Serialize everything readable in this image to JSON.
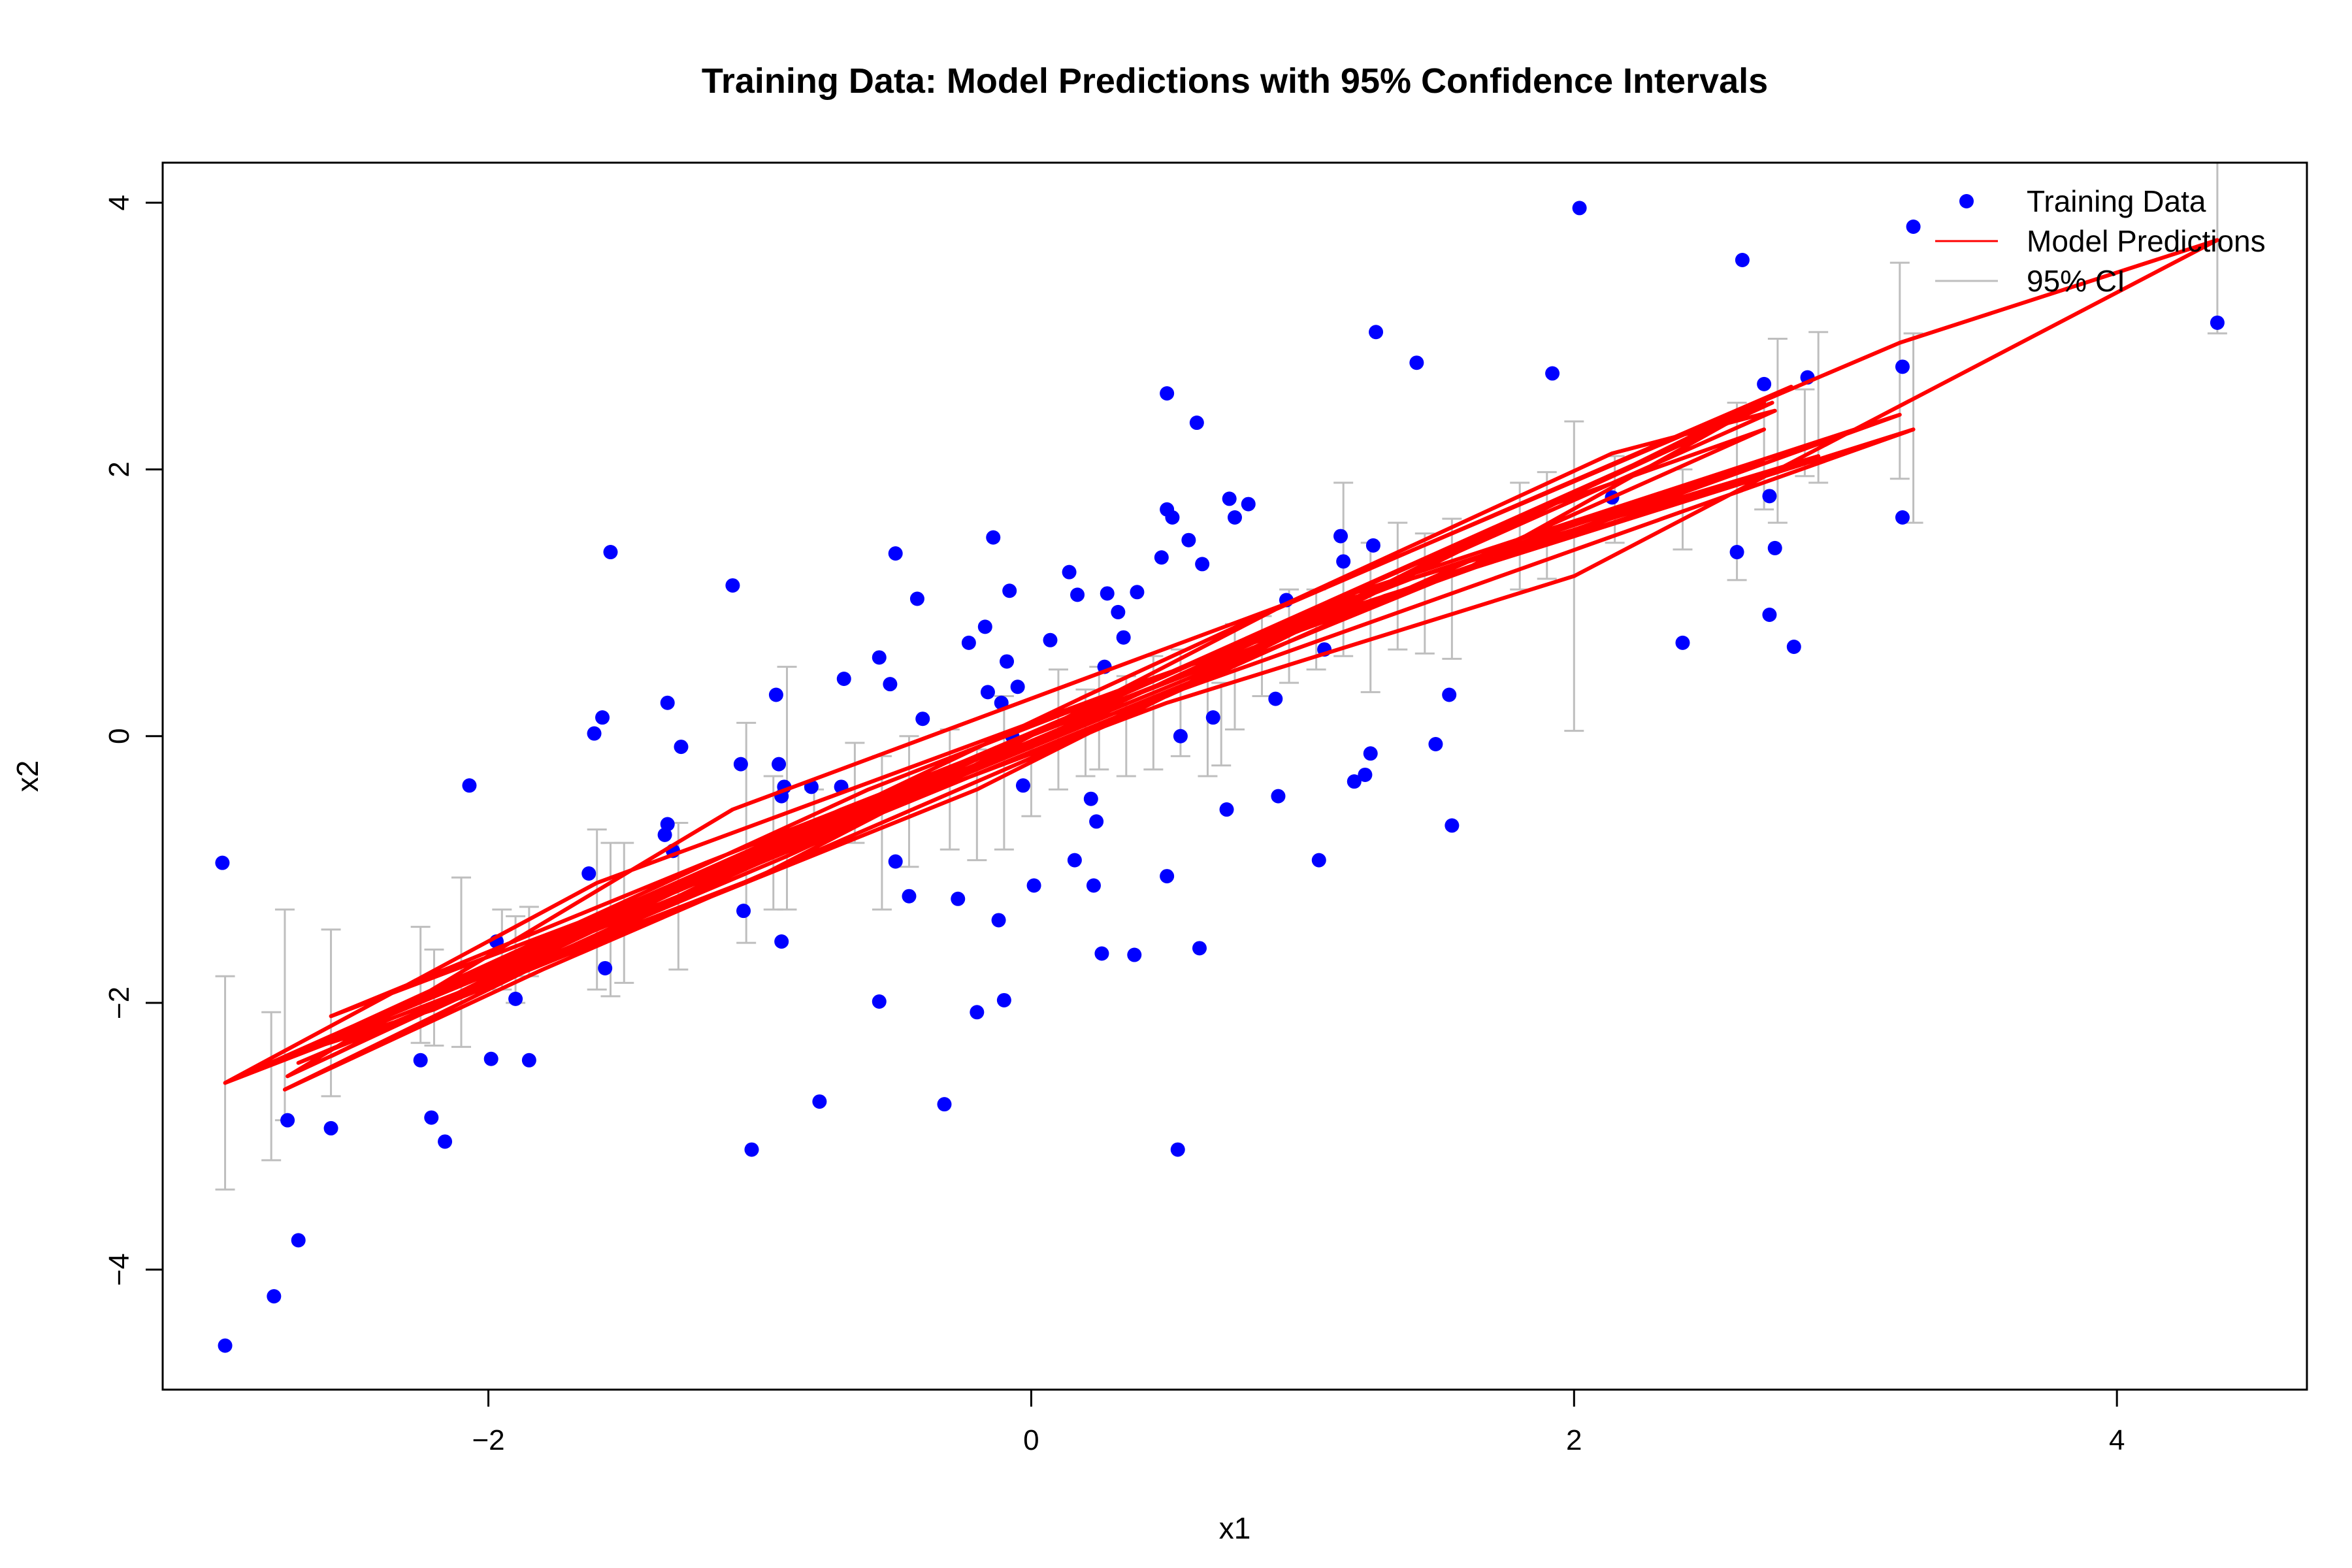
{
  "chart_data": {
    "type": "scatter",
    "title": "Training Data: Model Predictions with 95% Confidence Intervals",
    "xlabel": "x1",
    "ylabel": "x2",
    "xlim": [
      -3.2,
      4.7
    ],
    "ylim": [
      -4.9,
      4.3
    ],
    "xticks": [
      -2,
      0,
      2,
      4
    ],
    "yticks": [
      -4,
      -2,
      0,
      2,
      4
    ],
    "xtick_labels": [
      "−2",
      "0",
      "2",
      "4"
    ],
    "ytick_labels": [
      "−4",
      "−2",
      "0",
      "2",
      "4"
    ],
    "legend": {
      "position": "top-right",
      "entries": [
        {
          "label": "Training Data",
          "type": "point",
          "color": "#0000ff"
        },
        {
          "label": "Model Predictions",
          "type": "line",
          "color": "#ff0000"
        },
        {
          "label": "95% CI",
          "type": "line",
          "color": "#bebebe"
        }
      ]
    },
    "colors": {
      "points": "#0000ff",
      "predictions": "#ff0000",
      "ci": "#bebebe"
    },
    "series": [
      {
        "name": "Training Data",
        "points": [
          [
            -2.97,
            -4.57
          ],
          [
            -2.98,
            -0.95
          ],
          [
            -2.79,
            -4.2
          ],
          [
            -2.74,
            -2.88
          ],
          [
            -2.7,
            -3.78
          ],
          [
            -2.58,
            -2.94
          ],
          [
            -2.25,
            -2.43
          ],
          [
            -2.21,
            -2.86
          ],
          [
            -2.16,
            -3.04
          ],
          [
            -2.07,
            -0.37
          ],
          [
            -1.99,
            -2.42
          ],
          [
            -1.97,
            -1.54
          ],
          [
            -1.9,
            -1.97
          ],
          [
            -1.85,
            -2.43
          ],
          [
            -1.63,
            -1.03
          ],
          [
            -1.61,
            0.02
          ],
          [
            -1.58,
            0.14
          ],
          [
            -1.57,
            -1.74
          ],
          [
            -1.55,
            1.38
          ],
          [
            -1.35,
            -0.74
          ],
          [
            -1.34,
            0.25
          ],
          [
            -1.34,
            -0.66
          ],
          [
            -1.32,
            -0.86
          ],
          [
            -1.29,
            -0.08
          ],
          [
            -1.1,
            1.13
          ],
          [
            -1.07,
            -0.21
          ],
          [
            -1.06,
            -1.31
          ],
          [
            -1.03,
            -3.1
          ],
          [
            -0.94,
            0.31
          ],
          [
            -0.93,
            -0.21
          ],
          [
            -0.92,
            -0.45
          ],
          [
            -0.92,
            -1.54
          ],
          [
            -0.91,
            -0.38
          ],
          [
            -0.81,
            -0.38
          ],
          [
            -0.78,
            -2.74
          ],
          [
            -0.7,
            -0.38
          ],
          [
            -0.69,
            0.43
          ],
          [
            -0.56,
            0.59
          ],
          [
            -0.56,
            -1.99
          ],
          [
            -0.52,
            0.39
          ],
          [
            -0.5,
            -0.94
          ],
          [
            -0.5,
            1.37
          ],
          [
            -0.45,
            -1.2
          ],
          [
            -0.42,
            1.03
          ],
          [
            -0.4,
            0.13
          ],
          [
            -0.32,
            -2.76
          ],
          [
            -0.27,
            -1.22
          ],
          [
            -0.23,
            0.7
          ],
          [
            -0.2,
            -2.07
          ],
          [
            -0.17,
            0.82
          ],
          [
            -0.16,
            0.33
          ],
          [
            -0.14,
            1.49
          ],
          [
            -0.12,
            -1.38
          ],
          [
            -0.11,
            0.25
          ],
          [
            -0.1,
            -1.98
          ],
          [
            -0.09,
            0.56
          ],
          [
            -0.08,
            1.09
          ],
          [
            -0.07,
            0.0
          ],
          [
            -0.05,
            0.37
          ],
          [
            -0.03,
            -0.37
          ],
          [
            0.01,
            -1.12
          ],
          [
            0.07,
            0.72
          ],
          [
            0.14,
            1.23
          ],
          [
            0.17,
            1.06
          ],
          [
            0.16,
            -0.93
          ],
          [
            0.22,
            -0.47
          ],
          [
            0.23,
            -1.12
          ],
          [
            0.24,
            -0.64
          ],
          [
            0.26,
            -1.63
          ],
          [
            0.27,
            0.52
          ],
          [
            0.28,
            1.07
          ],
          [
            0.32,
            0.93
          ],
          [
            0.34,
            0.74
          ],
          [
            0.38,
            -1.64
          ],
          [
            0.39,
            1.08
          ],
          [
            0.48,
            1.34
          ],
          [
            0.5,
            -1.05
          ],
          [
            0.5,
            2.57
          ],
          [
            0.5,
            1.7
          ],
          [
            0.52,
            1.64
          ],
          [
            0.54,
            -3.1
          ],
          [
            0.55,
            0.0
          ],
          [
            0.58,
            1.47
          ],
          [
            0.61,
            2.35
          ],
          [
            0.62,
            -1.59
          ],
          [
            0.63,
            1.29
          ],
          [
            0.67,
            0.14
          ],
          [
            0.72,
            -0.55
          ],
          [
            0.73,
            1.78
          ],
          [
            0.75,
            1.64
          ],
          [
            0.8,
            1.74
          ],
          [
            0.9,
            0.28
          ],
          [
            0.91,
            -0.45
          ],
          [
            0.94,
            1.02
          ],
          [
            1.06,
            -0.93
          ],
          [
            1.08,
            0.65
          ],
          [
            1.14,
            1.5
          ],
          [
            1.15,
            1.31
          ],
          [
            1.19,
            -0.34
          ],
          [
            1.23,
            -0.29
          ],
          [
            1.25,
            -0.13
          ],
          [
            1.26,
            1.43
          ],
          [
            1.27,
            3.03
          ],
          [
            1.42,
            2.8
          ],
          [
            1.49,
            -0.06
          ],
          [
            1.54,
            0.31
          ],
          [
            1.55,
            -0.67
          ],
          [
            1.92,
            2.72
          ],
          [
            2.02,
            3.96
          ],
          [
            2.14,
            1.79
          ],
          [
            2.4,
            0.7
          ],
          [
            2.6,
            1.38
          ],
          [
            2.62,
            3.57
          ],
          [
            2.7,
            2.64
          ],
          [
            2.72,
            0.91
          ],
          [
            2.72,
            1.8
          ],
          [
            2.74,
            1.41
          ],
          [
            2.81,
            0.67
          ],
          [
            2.86,
            2.69
          ],
          [
            3.21,
            1.64
          ],
          [
            3.21,
            2.77
          ],
          [
            3.25,
            3.82
          ],
          [
            4.37,
            3.1
          ]
        ]
      },
      {
        "name": "Model Predictions",
        "path": [
          [
            -2.97,
            -2.6
          ],
          [
            -1.0,
            -1.05
          ],
          [
            0.9,
            0.95
          ],
          [
            2.8,
            2.62
          ],
          [
            0.3,
            0.1
          ],
          [
            -1.8,
            -1.75
          ],
          [
            -2.75,
            -2.65
          ],
          [
            -0.8,
            -0.7
          ],
          [
            1.2,
            1.08
          ],
          [
            3.2,
            2.41
          ],
          [
            1.0,
            0.8
          ],
          [
            -1.2,
            -0.95
          ],
          [
            -2.58,
            -2.1
          ],
          [
            -0.5,
            -0.5
          ],
          [
            1.6,
            1.25
          ],
          [
            2.7,
            2.5
          ],
          [
            0.6,
            0.45
          ],
          [
            -1.5,
            -1.3
          ],
          [
            -2.97,
            -2.6
          ],
          [
            -0.3,
            -0.25
          ],
          [
            1.95,
            1.77
          ],
          [
            2.73,
            2.5
          ],
          [
            -0.1,
            -0.08
          ],
          [
            -2.2,
            -2.05
          ],
          [
            -2.74,
            -2.4
          ],
          [
            -0.6,
            -0.4
          ],
          [
            1.4,
            1.18
          ],
          [
            2.9,
            2.1
          ],
          [
            0.8,
            0.72
          ],
          [
            -1.3,
            -1.1
          ],
          [
            -2.58,
            -2.4
          ],
          [
            0.2,
            0.3
          ],
          [
            2.14,
            2.12
          ],
          [
            2.74,
            2.44
          ],
          [
            0.1,
            0.05
          ],
          [
            -2.1,
            -1.85
          ],
          [
            -2.97,
            -2.6
          ],
          [
            -1.6,
            -1.1
          ],
          [
            0.4,
            0.4
          ],
          [
            2.7,
            2.05
          ],
          [
            1.1,
            0.98
          ],
          [
            -0.9,
            -0.9
          ],
          [
            -2.7,
            -2.45
          ],
          [
            -0.2,
            -0.4
          ],
          [
            1.8,
            1.65
          ],
          [
            2.7,
            2.3
          ],
          [
            0.5,
            0.3
          ],
          [
            -1.6,
            -1.45
          ],
          [
            -2.97,
            -2.6
          ],
          [
            -0.7,
            -0.55
          ],
          [
            1.3,
            1.05
          ],
          [
            3.25,
            2.3
          ],
          [
            0.0,
            -0.05
          ],
          [
            -2.0,
            -1.85
          ],
          [
            -2.74,
            -2.55
          ],
          [
            -1.1,
            -0.55
          ],
          [
            0.95,
            1.0
          ],
          [
            3.2,
            2.95
          ],
          [
            4.37,
            3.72
          ],
          [
            2.0,
            1.2
          ],
          [
            0.5,
            0.25
          ],
          [
            -1.5,
            -1.28
          ],
          [
            -2.97,
            -2.6
          ]
        ]
      },
      {
        "name": "95% CI",
        "intervals": [
          [
            -2.97,
            -3.4,
            -1.8
          ],
          [
            -2.8,
            -3.18,
            -2.07
          ],
          [
            -2.75,
            -2.88,
            -1.3
          ],
          [
            -2.58,
            -2.7,
            -1.45
          ],
          [
            -2.25,
            -2.3,
            -1.43
          ],
          [
            -2.2,
            -2.32,
            -1.6
          ],
          [
            -2.1,
            -2.33,
            -1.06
          ],
          [
            -1.95,
            -1.9,
            -1.3
          ],
          [
            -1.9,
            -2.0,
            -1.35
          ],
          [
            -1.85,
            -1.8,
            -1.28
          ],
          [
            -1.6,
            -1.9,
            -0.7
          ],
          [
            -1.55,
            -1.95,
            -0.8
          ],
          [
            -1.5,
            -1.85,
            -0.8
          ],
          [
            -1.3,
            -1.75,
            -0.65
          ],
          [
            -1.05,
            -1.55,
            0.1
          ],
          [
            -0.95,
            -1.3,
            -0.3
          ],
          [
            -0.9,
            -1.3,
            0.52
          ],
          [
            -0.8,
            -0.7,
            -0.4
          ],
          [
            -0.65,
            -0.8,
            -0.05
          ],
          [
            -0.55,
            -1.3,
            -0.15
          ],
          [
            -0.45,
            -0.98,
            0.0
          ],
          [
            -0.3,
            -0.85,
            0.05
          ],
          [
            -0.2,
            -0.93,
            -0.1
          ],
          [
            -0.1,
            -0.85,
            0.3
          ],
          [
            0.0,
            -0.6,
            -0.1
          ],
          [
            0.1,
            -0.4,
            0.5
          ],
          [
            0.2,
            -0.3,
            0.35
          ],
          [
            0.25,
            -0.25,
            0.52
          ],
          [
            0.35,
            -0.3,
            0.45
          ],
          [
            0.45,
            -0.25,
            0.6
          ],
          [
            0.55,
            -0.15,
            0.65
          ],
          [
            0.65,
            -0.3,
            0.58
          ],
          [
            0.7,
            -0.22,
            0.4
          ],
          [
            0.75,
            0.05,
            0.84
          ],
          [
            0.85,
            0.3,
            0.9
          ],
          [
            0.95,
            0.4,
            1.1
          ],
          [
            1.05,
            0.5,
            1.1
          ],
          [
            1.15,
            0.6,
            1.9
          ],
          [
            1.25,
            0.33,
            1.45
          ],
          [
            1.35,
            0.65,
            1.6
          ],
          [
            1.45,
            0.62,
            1.52
          ],
          [
            1.55,
            0.58,
            1.63
          ],
          [
            1.8,
            1.1,
            1.9
          ],
          [
            1.9,
            1.18,
            1.98
          ],
          [
            2.0,
            0.04,
            2.36
          ],
          [
            2.15,
            1.45,
            2.1
          ],
          [
            2.4,
            1.4,
            2.0
          ],
          [
            2.6,
            1.17,
            2.5
          ],
          [
            2.7,
            1.7,
            2.5
          ],
          [
            2.75,
            1.6,
            2.98
          ],
          [
            2.85,
            1.95,
            2.6
          ],
          [
            2.9,
            1.9,
            3.03
          ],
          [
            3.2,
            1.93,
            3.55
          ],
          [
            3.25,
            1.6,
            3.02
          ],
          [
            4.37,
            3.02,
            4.3
          ]
        ]
      }
    ]
  }
}
